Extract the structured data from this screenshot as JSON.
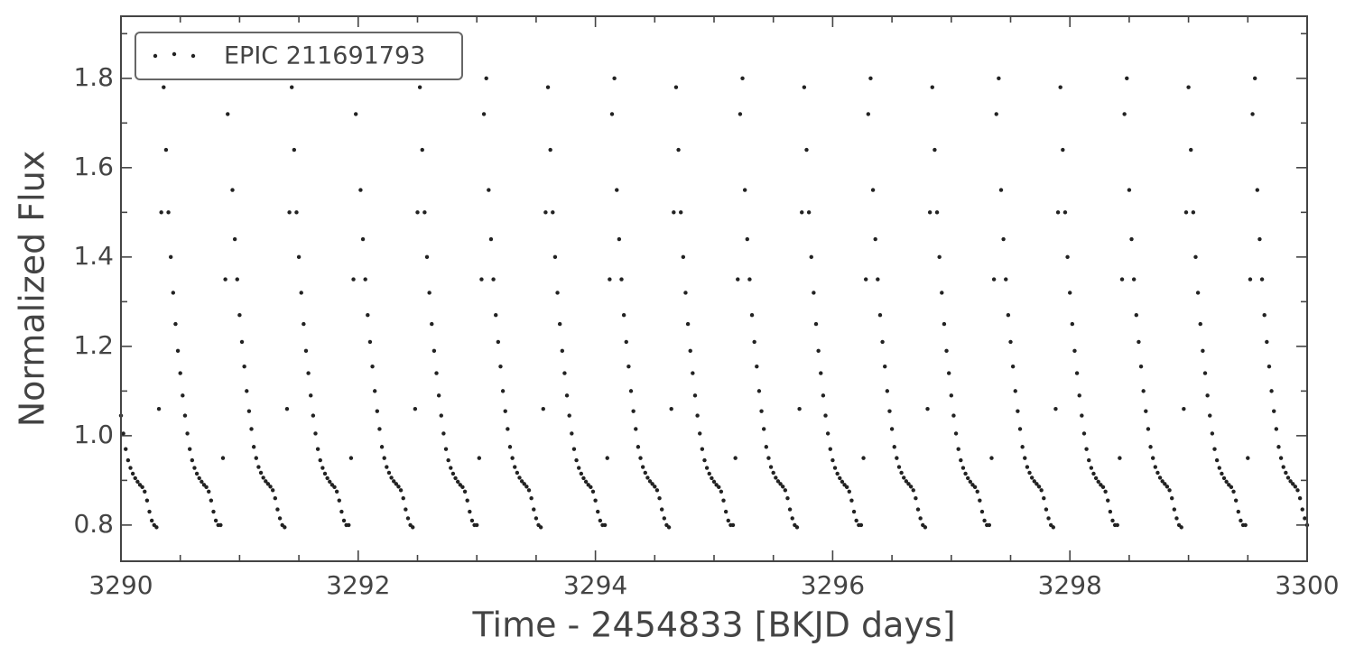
{
  "chart_data": {
    "type": "scatter",
    "xlabel": "Time - 2454833 [BKJD days]",
    "ylabel": "Normalized Flux",
    "legend": "upper left",
    "xlim": [
      3290,
      3300
    ],
    "ylim": [
      0.719,
      1.939
    ],
    "xticks": [
      3290,
      3292,
      3294,
      3296,
      3298,
      3300
    ],
    "xminorticks": [
      3290.5,
      3291,
      3291.5,
      3292.5,
      3293,
      3293.5,
      3294.5,
      3295,
      3295.5,
      3296.5,
      3297,
      3297.5,
      3298.5,
      3299,
      3299.5
    ],
    "yticks": [
      0.8,
      {
        "value": 1.0,
        "label": "1.0"
      },
      1.2,
      1.4,
      1.6,
      1.8
    ],
    "yminorticks": [
      0.9,
      1.1,
      1.3,
      1.5,
      1.7,
      1.9
    ],
    "series": [
      {
        "name": "EPIC 211691793",
        "color": "#222222",
        "x": [
          3290,
          3290.02,
          3290.04,
          3290.06,
          3290.08,
          3290.1,
          3290.12,
          3290.14,
          3290.16,
          3290.18,
          3290.2,
          3290.22,
          3290.24,
          3290.26,
          3290.28,
          3290.3,
          3290.32,
          3290.34,
          3290.36,
          3290.38,
          3290.4,
          3290.42,
          3290.44,
          3290.46,
          3290.48,
          3290.5,
          3290.52,
          3290.54,
          3290.56,
          3290.58,
          3290.6,
          3290.62,
          3290.64,
          3290.66,
          3290.68,
          3290.7,
          3290.72,
          3290.74,
          3290.76,
          3290.78,
          3290.8,
          3290.82,
          3290.84,
          3290.86,
          3290.88,
          3290.9,
          3290.92,
          3290.94,
          3290.96,
          3290.98,
          3291,
          3291.02,
          3291.04,
          3291.06,
          3291.08,
          3291.1,
          3291.12,
          3291.14,
          3291.16,
          3291.18,
          3291.2,
          3291.22,
          3291.24,
          3291.26,
          3291.28,
          3291.3,
          3291.32,
          3291.34,
          3291.36,
          3291.38,
          3291.4,
          3291.42,
          3291.44,
          3291.46,
          3291.48,
          3291.5,
          3291.52,
          3291.54,
          3291.56,
          3291.58,
          3291.6,
          3291.62,
          3291.64,
          3291.66,
          3291.68,
          3291.7,
          3291.72,
          3291.74,
          3291.76,
          3291.78,
          3291.8,
          3291.82,
          3291.84,
          3291.86,
          3291.88,
          3291.9,
          3291.92,
          3291.94,
          3291.96,
          3291.98,
          3292,
          3292.02,
          3292.04,
          3292.06,
          3292.08,
          3292.1,
          3292.12,
          3292.14,
          3292.16,
          3292.18,
          3292.2,
          3292.22,
          3292.24,
          3292.26,
          3292.28,
          3292.3,
          3292.32,
          3292.34,
          3292.36,
          3292.38,
          3292.4,
          3292.42,
          3292.44,
          3292.46,
          3292.48,
          3292.5,
          3292.52,
          3292.54,
          3292.56,
          3292.58,
          3292.6,
          3292.62,
          3292.64,
          3292.66,
          3292.68,
          3292.7,
          3292.72,
          3292.74,
          3292.76,
          3292.78,
          3292.8,
          3292.82,
          3292.84,
          3292.86,
          3292.88,
          3292.9,
          3292.92,
          3292.94,
          3292.96,
          3292.98,
          3293,
          3293.02,
          3293.04,
          3293.06,
          3293.08,
          3293.1,
          3293.12,
          3293.14,
          3293.16,
          3293.18,
          3293.2,
          3293.22,
          3293.24,
          3293.26,
          3293.28,
          3293.3,
          3293.32,
          3293.34,
          3293.36,
          3293.38,
          3293.4,
          3293.42,
          3293.44,
          3293.46,
          3293.48,
          3293.5,
          3293.52,
          3293.54,
          3293.56,
          3293.58,
          3293.6,
          3293.62,
          3293.64,
          3293.66,
          3293.68,
          3293.7,
          3293.72,
          3293.74,
          3293.76,
          3293.78,
          3293.8,
          3293.82,
          3293.84,
          3293.86,
          3293.88,
          3293.9,
          3293.92,
          3293.94,
          3293.96,
          3293.98,
          3294,
          3294.02,
          3294.04,
          3294.06,
          3294.08,
          3294.1,
          3294.12,
          3294.14,
          3294.16,
          3294.18,
          3294.2,
          3294.22,
          3294.24,
          3294.26,
          3294.28,
          3294.3,
          3294.32,
          3294.34,
          3294.36,
          3294.38,
          3294.4,
          3294.42,
          3294.44,
          3294.46,
          3294.48,
          3294.5,
          3294.52,
          3294.54,
          3294.56,
          3294.58,
          3294.6,
          3294.62,
          3294.64,
          3294.66,
          3294.68,
          3294.7,
          3294.72,
          3294.74,
          3294.76,
          3294.78,
          3294.8,
          3294.82,
          3294.84,
          3294.86,
          3294.88,
          3294.9,
          3294.92,
          3294.94,
          3294.96,
          3294.98,
          3295,
          3295.02,
          3295.04,
          3295.06,
          3295.08,
          3295.1,
          3295.12,
          3295.14,
          3295.16,
          3295.18,
          3295.2,
          3295.22,
          3295.24,
          3295.26,
          3295.28,
          3295.3,
          3295.32,
          3295.34,
          3295.36,
          3295.38,
          3295.4,
          3295.42,
          3295.44,
          3295.46,
          3295.48,
          3295.5,
          3295.52,
          3295.54,
          3295.56,
          3295.58,
          3295.6,
          3295.62,
          3295.64,
          3295.66,
          3295.68,
          3295.7,
          3295.72,
          3295.74,
          3295.76,
          3295.78,
          3295.8,
          3295.82,
          3295.84,
          3295.86,
          3295.88,
          3295.9,
          3295.92,
          3295.94,
          3295.96,
          3295.98,
          3296,
          3296.02,
          3296.04,
          3296.06,
          3296.08,
          3296.1,
          3296.12,
          3296.14,
          3296.16,
          3296.18,
          3296.2,
          3296.22,
          3296.24,
          3296.26,
          3296.28,
          3296.3,
          3296.32,
          3296.34,
          3296.36,
          3296.38,
          3296.4,
          3296.42,
          3296.44,
          3296.46,
          3296.48,
          3296.5,
          3296.52,
          3296.54,
          3296.56,
          3296.58,
          3296.6,
          3296.62,
          3296.64,
          3296.66,
          3296.68,
          3296.7,
          3296.72,
          3296.74,
          3296.76,
          3296.78,
          3296.8,
          3296.82,
          3296.84,
          3296.86,
          3296.88,
          3296.9,
          3296.92,
          3296.94,
          3296.96,
          3296.98,
          3297,
          3297.02,
          3297.04,
          3297.06,
          3297.08,
          3297.1,
          3297.12,
          3297.14,
          3297.16,
          3297.18,
          3297.2,
          3297.22,
          3297.24,
          3297.26,
          3297.28,
          3297.3,
          3297.32,
          3297.34,
          3297.36,
          3297.38,
          3297.4,
          3297.42,
          3297.44,
          3297.46,
          3297.48,
          3297.5,
          3297.52,
          3297.54,
          3297.56,
          3297.58,
          3297.6,
          3297.62,
          3297.64,
          3297.66,
          3297.68,
          3297.7,
          3297.72,
          3297.74,
          3297.76,
          3297.78,
          3297.8,
          3297.82,
          3297.84,
          3297.86,
          3297.88,
          3297.9,
          3297.92,
          3297.94,
          3297.96,
          3297.98,
          3298,
          3298.02,
          3298.04,
          3298.06,
          3298.08,
          3298.1,
          3298.12,
          3298.14,
          3298.16,
          3298.18,
          3298.2,
          3298.22,
          3298.24,
          3298.26,
          3298.28,
          3298.3,
          3298.32,
          3298.34,
          3298.36,
          3298.38,
          3298.4,
          3298.42,
          3298.44,
          3298.46,
          3298.48,
          3298.5,
          3298.52,
          3298.54,
          3298.56,
          3298.58,
          3298.6,
          3298.62,
          3298.64,
          3298.66,
          3298.68,
          3298.7,
          3298.72,
          3298.74,
          3298.76,
          3298.78,
          3298.8,
          3298.82,
          3298.84,
          3298.86,
          3298.88,
          3298.9,
          3298.92,
          3298.94,
          3298.96,
          3298.98,
          3299,
          3299.02,
          3299.04,
          3299.06,
          3299.08,
          3299.1,
          3299.12,
          3299.14,
          3299.16,
          3299.18,
          3299.2,
          3299.22,
          3299.24,
          3299.26,
          3299.28,
          3299.3,
          3299.32,
          3299.34,
          3299.36,
          3299.38,
          3299.4,
          3299.42,
          3299.44,
          3299.46,
          3299.48,
          3299.5,
          3299.52,
          3299.54,
          3299.56,
          3299.58,
          3299.6,
          3299.62,
          3299.64,
          3299.66,
          3299.68,
          3299.7,
          3299.72,
          3299.74,
          3299.76,
          3299.78,
          3299.8,
          3299.82,
          3299.84,
          3299.86,
          3299.88,
          3299.9,
          3299.92,
          3299.94,
          3299.96,
          3299.98,
          3300
        ],
        "values": [
          1.045,
          1.005,
          0.97,
          0.945,
          0.928,
          0.915,
          0.905,
          0.897,
          0.89,
          0.885,
          0.875,
          0.855,
          0.83,
          0.81,
          0.8,
          0.795,
          1.06,
          1.5,
          1.78,
          1.64,
          1.5,
          1.4,
          1.32,
          1.25,
          1.19,
          1.14,
          1.09,
          1.045,
          1.005,
          0.97,
          0.945,
          0.928,
          0.915,
          0.905,
          0.897,
          0.89,
          0.885,
          0.875,
          0.855,
          0.83,
          0.81,
          0.8,
          0.8,
          0.95,
          1.35,
          1.72,
          1.8,
          1.55,
          1.44,
          1.35,
          1.27,
          1.21,
          1.155,
          1.1,
          1.055,
          1.015,
          0.975,
          0.95,
          0.93,
          0.917,
          0.906,
          0.898,
          0.892,
          0.886,
          0.878,
          0.86,
          0.835,
          0.815,
          0.8,
          0.795,
          1.06,
          1.5,
          1.78,
          1.64,
          1.5,
          1.4,
          1.32,
          1.25,
          1.19,
          1.14,
          1.09,
          1.045,
          1.005,
          0.97,
          0.945,
          0.928,
          0.915,
          0.905,
          0.897,
          0.89,
          0.885,
          0.875,
          0.855,
          0.83,
          0.81,
          0.8,
          0.8,
          0.95,
          1.35,
          1.72,
          1.8,
          1.55,
          1.44,
          1.35,
          1.27,
          1.21,
          1.155,
          1.1,
          1.055,
          1.015,
          0.975,
          0.95,
          0.93,
          0.917,
          0.906,
          0.898,
          0.892,
          0.886,
          0.878,
          0.86,
          0.835,
          0.815,
          0.8,
          0.795,
          1.06,
          1.5,
          1.78,
          1.64,
          1.5,
          1.4,
          1.32,
          1.25,
          1.19,
          1.14,
          1.09,
          1.045,
          1.005,
          0.97,
          0.945,
          0.928,
          0.915,
          0.905,
          0.897,
          0.89,
          0.885,
          0.875,
          0.855,
          0.83,
          0.81,
          0.8,
          0.8,
          0.95,
          1.35,
          1.72,
          1.8,
          1.55,
          1.44,
          1.35,
          1.27,
          1.21,
          1.155,
          1.1,
          1.055,
          1.015,
          0.975,
          0.95,
          0.93,
          0.917,
          0.906,
          0.898,
          0.892,
          0.886,
          0.878,
          0.86,
          0.835,
          0.815,
          0.8,
          0.795,
          1.06,
          1.5,
          1.78,
          1.64,
          1.5,
          1.4,
          1.32,
          1.25,
          1.19,
          1.14,
          1.09,
          1.045,
          1.005,
          0.97,
          0.945,
          0.928,
          0.915,
          0.905,
          0.897,
          0.89,
          0.885,
          0.875,
          0.855,
          0.83,
          0.81,
          0.8,
          0.8,
          0.95,
          1.35,
          1.72,
          1.8,
          1.55,
          1.44,
          1.35,
          1.27,
          1.21,
          1.155,
          1.1,
          1.055,
          1.015,
          0.975,
          0.95,
          0.93,
          0.917,
          0.906,
          0.898,
          0.892,
          0.886,
          0.878,
          0.86,
          0.835,
          0.815,
          0.8,
          0.795,
          1.06,
          1.5,
          1.78,
          1.64,
          1.5,
          1.4,
          1.32,
          1.25,
          1.19,
          1.14,
          1.09,
          1.045,
          1.005,
          0.97,
          0.945,
          0.928,
          0.915,
          0.905,
          0.897,
          0.89,
          0.885,
          0.875,
          0.855,
          0.83,
          0.81,
          0.8,
          0.8,
          0.95,
          1.35,
          1.72,
          1.8,
          1.55,
          1.44,
          1.35,
          1.27,
          1.21,
          1.155,
          1.1,
          1.055,
          1.015,
          0.975,
          0.95,
          0.93,
          0.917,
          0.906,
          0.898,
          0.892,
          0.886,
          0.878,
          0.86,
          0.835,
          0.815,
          0.8,
          0.795,
          1.06,
          1.5,
          1.78,
          1.64,
          1.5,
          1.4,
          1.32,
          1.25,
          1.19,
          1.14,
          1.09,
          1.045,
          1.005,
          0.97,
          0.945,
          0.928,
          0.915,
          0.905,
          0.897,
          0.89,
          0.885,
          0.875,
          0.855,
          0.83,
          0.81,
          0.8,
          0.8,
          0.95,
          1.35,
          1.72,
          1.8,
          1.55,
          1.44,
          1.35,
          1.27,
          1.21,
          1.155,
          1.1,
          1.055,
          1.015,
          0.975,
          0.95,
          0.93,
          0.917,
          0.906,
          0.898,
          0.892,
          0.886,
          0.878,
          0.86,
          0.835,
          0.815,
          0.8,
          0.795,
          1.06,
          1.5,
          1.78,
          1.64,
          1.5,
          1.4,
          1.32,
          1.25,
          1.19,
          1.14,
          1.09,
          1.045,
          1.005,
          0.97,
          0.945,
          0.928,
          0.915,
          0.905,
          0.897,
          0.89,
          0.885,
          0.875,
          0.855,
          0.83,
          0.81,
          0.8,
          0.8,
          0.95,
          1.35,
          1.72,
          1.8,
          1.55,
          1.44,
          1.35,
          1.27,
          1.21,
          1.155,
          1.1,
          1.055,
          1.015,
          0.975,
          0.95,
          0.93,
          0.917,
          0.906,
          0.898,
          0.892,
          0.886,
          0.878,
          0.86,
          0.835,
          0.815,
          0.8,
          0.795,
          1.06,
          1.5,
          1.78,
          1.64,
          1.5,
          1.4,
          1.32,
          1.25,
          1.19,
          1.14,
          1.09,
          1.045,
          1.005,
          0.97,
          0.945,
          0.928,
          0.915,
          0.905,
          0.897,
          0.89,
          0.885,
          0.875,
          0.855,
          0.83,
          0.81,
          0.8,
          0.8,
          0.95,
          1.35,
          1.72,
          1.8,
          1.55,
          1.44,
          1.35,
          1.27,
          1.21,
          1.155,
          1.1,
          1.055,
          1.015,
          0.975,
          0.95,
          0.93,
          0.917,
          0.906,
          0.898,
          0.892,
          0.886,
          0.878,
          0.86,
          0.835,
          0.815,
          0.8,
          0.795,
          1.06,
          1.5,
          1.78,
          1.64,
          1.5,
          1.4,
          1.32,
          1.25,
          1.19,
          1.14,
          1.09,
          1.045,
          1.005,
          0.97,
          0.945,
          0.928,
          0.915,
          0.905,
          0.897,
          0.89,
          0.885,
          0.875,
          0.855,
          0.83,
          0.81,
          0.8,
          0.8,
          0.95,
          1.35,
          1.72,
          1.8,
          1.55,
          1.44,
          1.35,
          1.27,
          1.21,
          1.155,
          1.1,
          1.055,
          1.015,
          0.975,
          0.95,
          0.93,
          0.917,
          0.906,
          0.898,
          0.892,
          0.886,
          0.878,
          0.86,
          0.835,
          0.815,
          0.8
        ]
      }
    ]
  }
}
